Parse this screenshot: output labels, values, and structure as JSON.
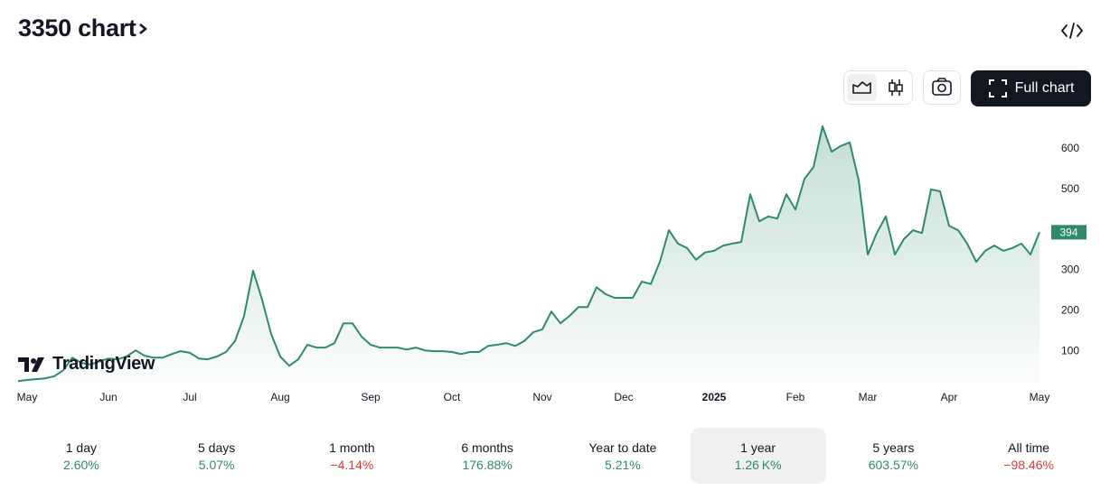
{
  "header": {
    "title": "3350 chart",
    "button": "Full chart",
    "brand": "TradingView"
  },
  "chart_data": {
    "type": "area",
    "categories": [
      null,
      "May",
      null,
      null,
      null,
      null,
      null,
      null,
      null,
      null,
      "Jun",
      null,
      null,
      null,
      null,
      null,
      null,
      null,
      null,
      "Jul",
      null,
      null,
      null,
      null,
      null,
      null,
      null,
      null,
      null,
      "Aug",
      null,
      null,
      null,
      null,
      null,
      null,
      null,
      null,
      null,
      "Sep",
      null,
      null,
      null,
      null,
      null,
      null,
      null,
      null,
      "Oct",
      null,
      null,
      null,
      null,
      null,
      null,
      null,
      null,
      null,
      "Nov",
      null,
      null,
      null,
      null,
      null,
      null,
      null,
      null,
      "Dec",
      null,
      null,
      null,
      null,
      null,
      null,
      null,
      null,
      null,
      "2025",
      null,
      null,
      null,
      null,
      null,
      null,
      null,
      null,
      "Feb",
      null,
      null,
      null,
      null,
      null,
      null,
      null,
      "Mar",
      null,
      null,
      null,
      null,
      null,
      null,
      null,
      null,
      "Apr",
      null,
      null,
      null,
      null,
      null,
      null,
      null,
      null,
      null,
      "May"
    ],
    "values": [
      26,
      29,
      31,
      33,
      38,
      53,
      84,
      71,
      67,
      75,
      82,
      80,
      87,
      102,
      89,
      84,
      84,
      93,
      100,
      96,
      82,
      80,
      87,
      98,
      125,
      187,
      299,
      227,
      142,
      87,
      64,
      80,
      116,
      109,
      109,
      120,
      169,
      169,
      136,
      116,
      109,
      109,
      109,
      104,
      109,
      102,
      100,
      100,
      98,
      93,
      98,
      98,
      113,
      116,
      120,
      113,
      125,
      147,
      154,
      198,
      169,
      187,
      209,
      209,
      258,
      241,
      232,
      232,
      232,
      272,
      266,
      321,
      399,
      366,
      355,
      326,
      344,
      348,
      361,
      366,
      370,
      488,
      421,
      433,
      428,
      488,
      450,
      526,
      555,
      656,
      593,
      607,
      616,
      522,
      339,
      392,
      433,
      339,
      377,
      399,
      392,
      500,
      495,
      410,
      399,
      366,
      321,
      348,
      361,
      348,
      355,
      366,
      339,
      394
    ],
    "color": "#2f8a6d",
    "ylim": [
      20,
      678
    ],
    "yticks": [
      100,
      200,
      300,
      500,
      600
    ],
    "grid": false
  },
  "periods": [
    {
      "label": "1 day",
      "change": "2.60%",
      "color": "#2f8a6d",
      "selected": false
    },
    {
      "label": "5 days",
      "change": "5.07%",
      "color": "#2f8a6d",
      "selected": false
    },
    {
      "label": "1 month",
      "change": "−4.14%",
      "color": "#e53935",
      "selected": false
    },
    {
      "label": "6 months",
      "change": "176.88%",
      "color": "#2f8a6d",
      "selected": false
    },
    {
      "label": "Year to date",
      "change": "5.21%",
      "color": "#2f8a6d",
      "selected": false
    },
    {
      "label": "1 year",
      "change": "1.26 K%",
      "color": "#2f8a6d",
      "selected": true
    },
    {
      "label": "5 years",
      "change": "603.57%",
      "color": "#2f8a6d",
      "selected": false
    },
    {
      "label": "All time",
      "change": "−98.46%",
      "color": "#e53935",
      "selected": false
    }
  ]
}
